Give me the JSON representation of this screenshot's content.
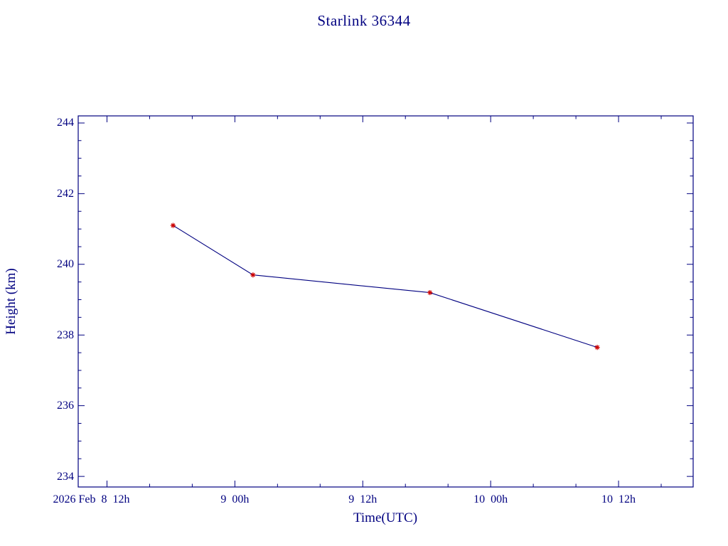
{
  "page": {
    "background_color": "#ffffff",
    "accent_color": "#000080",
    "marker_color": "#cc0000"
  },
  "chart_data": {
    "type": "line",
    "title": "Starlink 36344",
    "xlabel": "Time(UTC)",
    "ylabel": "Height (km)",
    "grid": false,
    "legend": "none",
    "axis_color": "#000080",
    "line_color": "#000080",
    "marker_color": "#cc0000",
    "marker_style": "asterisk",
    "x_unit": "hours since 2026 Feb 8 00h UTC",
    "xlim": [
      9.3,
      67.0
    ],
    "ylim": [
      233.7,
      244.2
    ],
    "x_minor_step": 4,
    "y_minor_step": 0.5,
    "x_ticks": [
      {
        "value": 12,
        "label": "2026 Feb  8  12h"
      },
      {
        "value": 24,
        "label": "9  00h"
      },
      {
        "value": 36,
        "label": "9  12h"
      },
      {
        "value": 48,
        "label": "10  00h"
      },
      {
        "value": 60,
        "label": "10  12h"
      }
    ],
    "y_ticks": [
      {
        "value": 234,
        "label": "234"
      },
      {
        "value": 236,
        "label": "236"
      },
      {
        "value": 238,
        "label": "238"
      },
      {
        "value": 240,
        "label": "240"
      },
      {
        "value": 242,
        "label": "242"
      },
      {
        "value": 244,
        "label": "244"
      }
    ],
    "series": [
      {
        "name": "height",
        "points": [
          {
            "x": 18.2,
            "y": 241.1
          },
          {
            "x": 25.7,
            "y": 239.7
          },
          {
            "x": 42.3,
            "y": 239.2
          },
          {
            "x": 58.0,
            "y": 237.65
          }
        ]
      }
    ]
  }
}
